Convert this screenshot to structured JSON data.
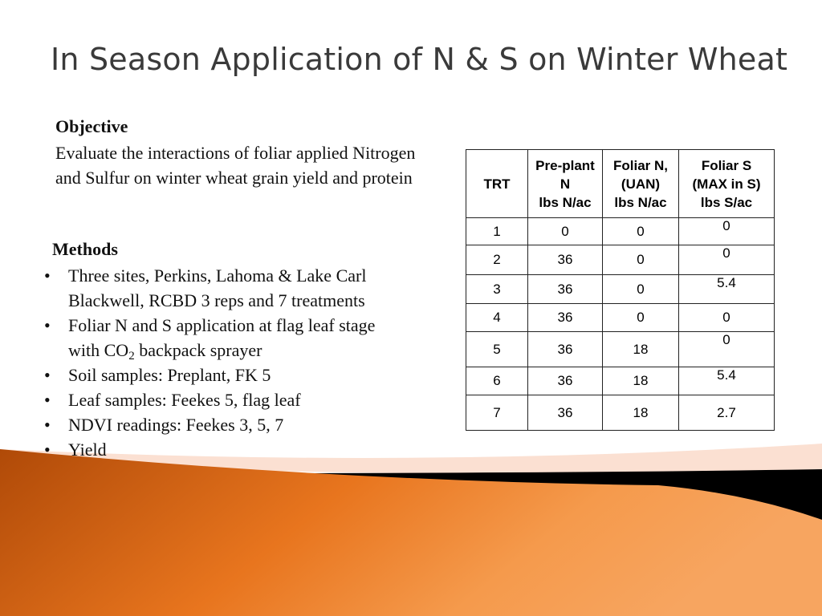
{
  "slide": {
    "title": "In Season Application of N & S on Winter Wheat",
    "objective": {
      "heading": "Objective",
      "text": "Evaluate the interactions  of  foliar applied Nitrogen and Sulfur on winter wheat grain yield and protein"
    },
    "methods": {
      "heading": "Methods",
      "items": [
        "Three sites, Perkins,  Lahoma & Lake Carl Blackwell, RCBD  3 reps and 7 treatments",
        "Foliar N and S application at flag leaf stage with CO",
        "Soil samples: Preplant, FK 5",
        "Leaf samples: Feekes 5, flag leaf",
        "NDVI readings: Feekes 3, 5, 7",
        "Yield"
      ],
      "co2_subscript": "2",
      "co2_suffix": " backpack sprayer"
    }
  },
  "table": {
    "headers": [
      {
        "lines": [
          "TRT"
        ]
      },
      {
        "lines": [
          "Pre-plant",
          "N",
          "lbs N/ac"
        ]
      },
      {
        "lines": [
          "Foliar N,",
          "(UAN)",
          "lbs N/ac"
        ]
      },
      {
        "lines": [
          "Foliar S",
          "(MAX in S)",
          "lbs S/ac"
        ]
      }
    ],
    "rows": [
      {
        "trt": "1",
        "preplant_n": "0",
        "foliar_n": "0",
        "foliar_s": "0"
      },
      {
        "trt": "2",
        "preplant_n": "36",
        "foliar_n": "0",
        "foliar_s": "0"
      },
      {
        "trt": "3",
        "preplant_n": "36",
        "foliar_n": "0",
        "foliar_s": "5.4"
      },
      {
        "trt": "4",
        "preplant_n": "36",
        "foliar_n": "0",
        "foliar_s": "0"
      },
      {
        "trt": "5",
        "preplant_n": "36",
        "foliar_n": "18",
        "foliar_s": "0"
      },
      {
        "trt": "6",
        "preplant_n": "36",
        "foliar_n": "18",
        "foliar_s": "5.4"
      },
      {
        "trt": "7",
        "preplant_n": "36",
        "foliar_n": "18",
        "foliar_s": "2.7"
      }
    ]
  },
  "colors": {
    "swoosh_orange_light": "#f7a35a",
    "swoosh_orange_dark": "#a84406",
    "band_black": "#000000",
    "band_peach": "#fbe0d2"
  }
}
